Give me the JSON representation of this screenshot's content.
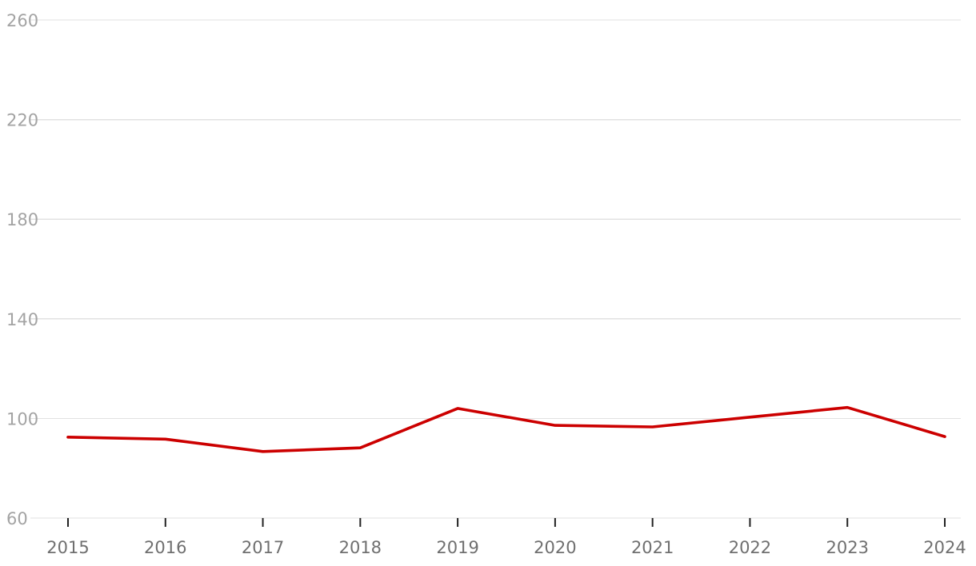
{
  "chart_data": {
    "type": "line",
    "title": "",
    "xlabel": "",
    "ylabel": "",
    "x": [
      "2015",
      "2016",
      "2017",
      "2018",
      "2019",
      "2020",
      "2021",
      "2022",
      "2023",
      "2024"
    ],
    "series": [
      {
        "color": "#cc0000",
        "values": [
          92.5,
          91.7,
          86.7,
          88.2,
          104.0,
          97.2,
          96.6,
          100.5,
          104.4,
          92.7
        ]
      }
    ],
    "ylim": [
      60,
      260
    ],
    "yticks": [
      "60",
      "100",
      "140",
      "180",
      "220",
      "260"
    ],
    "grid": true,
    "legend": "none"
  }
}
